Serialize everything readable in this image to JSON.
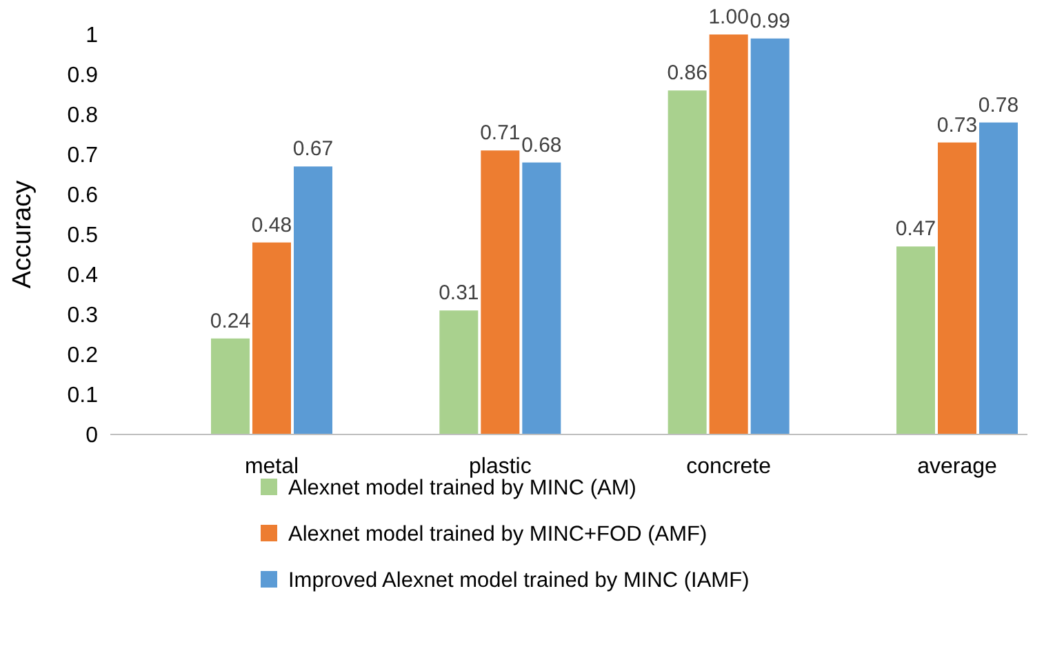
{
  "chart_data": {
    "type": "bar",
    "ylabel": "Accuracy",
    "categories": [
      "metal",
      "plastic",
      "concrete",
      "average"
    ],
    "series": [
      {
        "name": "Alexnet model trained by MINC (AM)",
        "color": "#a9d18e",
        "values": [
          0.24,
          0.31,
          0.86,
          0.47
        ],
        "value_labels": [
          "0.24",
          "0.31",
          "0.86",
          "0.47"
        ]
      },
      {
        "name": "Alexnet model trained by MINC+FOD (AMF)",
        "color": "#ed7d31",
        "values": [
          0.48,
          0.71,
          1.0,
          0.73
        ],
        "value_labels": [
          "0.48",
          "0.71",
          "1.00",
          "0.73"
        ]
      },
      {
        "name": "Improved Alexnet model trained by MINC (IAMF)",
        "color": "#5b9bd5",
        "values": [
          0.67,
          0.68,
          0.99,
          0.78
        ],
        "value_labels": [
          "0.67",
          "0.68",
          "0.99",
          "0.78"
        ]
      }
    ],
    "ylim": [
      0,
      1
    ],
    "yticks": [
      0,
      0.1,
      0.2,
      0.3,
      0.4,
      0.5,
      0.6,
      0.7,
      0.8,
      0.9,
      1
    ],
    "legend": "bottom",
    "grid": false
  }
}
